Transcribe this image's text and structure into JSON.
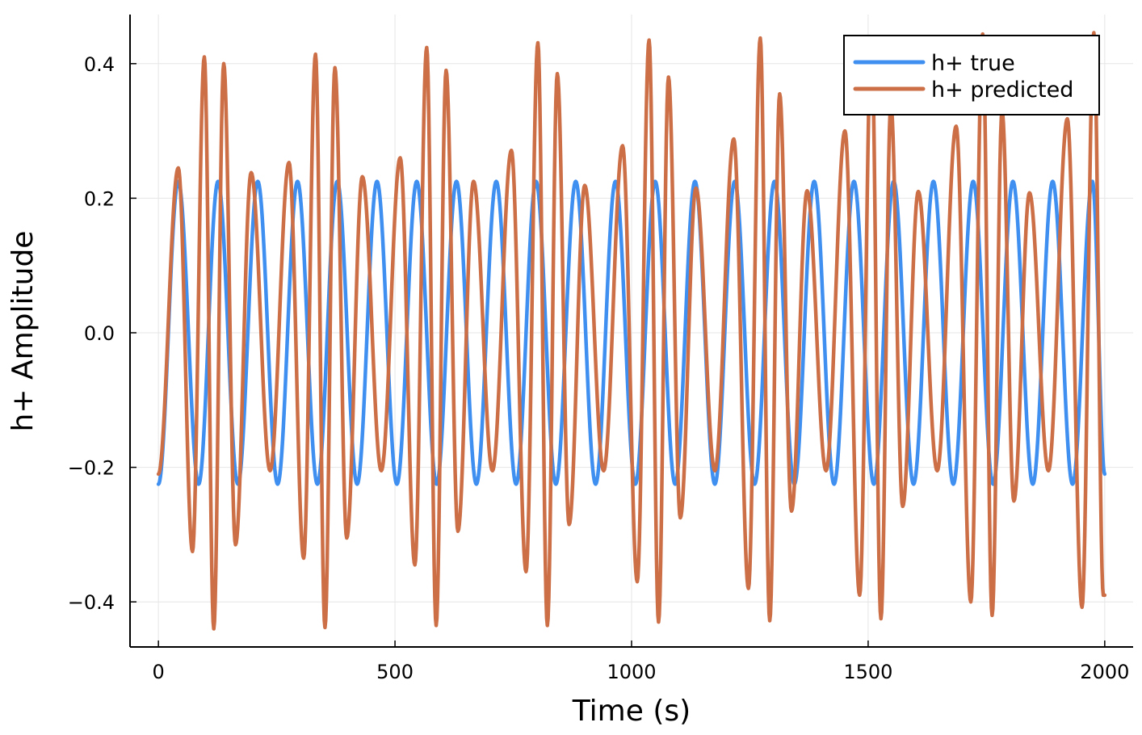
{
  "chart_data": {
    "type": "line",
    "title": "",
    "xlabel": "Time (s)",
    "ylabel": "h+ Amplitude",
    "xlim": [
      -60,
      2060
    ],
    "ylim": [
      -0.467,
      0.473
    ],
    "xticks": [
      0,
      500,
      1000,
      1500,
      2000
    ],
    "xtick_labels": [
      "0",
      "500",
      "1000",
      "1500",
      "2000"
    ],
    "yticks": [
      -0.4,
      -0.2,
      0.0,
      0.2,
      0.4
    ],
    "ytick_labels": [
      "−0.4",
      "−0.2",
      "0.0",
      "0.2",
      "0.4"
    ],
    "grid": true,
    "legend_position": "top-right",
    "series": [
      {
        "name": "h+ true",
        "color": "#3e8ff0",
        "x_range": [
          0,
          2000
        ],
        "points": [
          [
            0,
            -0.225
          ],
          [
            42,
            0.225
          ],
          [
            85,
            -0.225
          ],
          [
            126,
            0.225
          ],
          [
            168,
            -0.225
          ],
          [
            210,
            0.225
          ],
          [
            252,
            -0.225
          ],
          [
            294,
            0.225
          ],
          [
            336,
            -0.225
          ],
          [
            378,
            0.225
          ],
          [
            420,
            -0.225
          ],
          [
            462,
            0.225
          ],
          [
            504,
            -0.225
          ],
          [
            546,
            0.225
          ],
          [
            588,
            -0.225
          ],
          [
            630,
            0.225
          ],
          [
            672,
            -0.225
          ],
          [
            714,
            0.225
          ],
          [
            756,
            -0.225
          ],
          [
            798,
            0.225
          ],
          [
            840,
            -0.225
          ],
          [
            882,
            0.225
          ],
          [
            924,
            -0.225
          ],
          [
            966,
            0.225
          ],
          [
            1008,
            -0.225
          ],
          [
            1050,
            0.225
          ],
          [
            1092,
            -0.225
          ],
          [
            1134,
            0.225
          ],
          [
            1176,
            -0.225
          ],
          [
            1218,
            0.225
          ],
          [
            1260,
            -0.225
          ],
          [
            1302,
            0.225
          ],
          [
            1344,
            -0.225
          ],
          [
            1386,
            0.225
          ],
          [
            1428,
            -0.225
          ],
          [
            1470,
            0.225
          ],
          [
            1512,
            -0.225
          ],
          [
            1554,
            0.225
          ],
          [
            1596,
            -0.225
          ],
          [
            1638,
            0.225
          ],
          [
            1680,
            -0.225
          ],
          [
            1722,
            0.225
          ],
          [
            1764,
            -0.225
          ],
          [
            1806,
            0.225
          ],
          [
            1848,
            -0.225
          ],
          [
            1890,
            0.225
          ],
          [
            1932,
            -0.225
          ],
          [
            1974,
            0.225
          ],
          [
            2000,
            -0.21
          ]
        ]
      },
      {
        "name": "h+ predicted",
        "color": "#cc6f47",
        "x_range": [
          0,
          2000
        ],
        "points": [
          [
            0,
            -0.21
          ],
          [
            42,
            0.245
          ],
          [
            72,
            -0.325
          ],
          [
            97,
            0.41
          ],
          [
            117,
            -0.44
          ],
          [
            138,
            0.4
          ],
          [
            163,
            -0.315
          ],
          [
            196,
            0.238
          ],
          [
            236,
            -0.205
          ],
          [
            276,
            0.253
          ],
          [
            307,
            -0.335
          ],
          [
            332,
            0.414
          ],
          [
            352,
            -0.438
          ],
          [
            373,
            0.394
          ],
          [
            398,
            -0.305
          ],
          [
            431,
            0.232
          ],
          [
            471,
            -0.205
          ],
          [
            511,
            0.26
          ],
          [
            542,
            -0.345
          ],
          [
            567,
            0.424
          ],
          [
            587,
            -0.435
          ],
          [
            608,
            0.39
          ],
          [
            633,
            -0.295
          ],
          [
            666,
            0.225
          ],
          [
            706,
            -0.205
          ],
          [
            746,
            0.271
          ],
          [
            777,
            -0.355
          ],
          [
            802,
            0.431
          ],
          [
            822,
            -0.435
          ],
          [
            843,
            0.385
          ],
          [
            868,
            -0.285
          ],
          [
            901,
            0.219
          ],
          [
            941,
            -0.205
          ],
          [
            981,
            0.278
          ],
          [
            1012,
            -0.37
          ],
          [
            1037,
            0.435
          ],
          [
            1057,
            -0.43
          ],
          [
            1078,
            0.38
          ],
          [
            1103,
            -0.275
          ],
          [
            1136,
            0.215
          ],
          [
            1176,
            -0.205
          ],
          [
            1216,
            0.288
          ],
          [
            1247,
            -0.38
          ],
          [
            1272,
            0.438
          ],
          [
            1292,
            -0.428
          ],
          [
            1313,
            0.355
          ],
          [
            1338,
            -0.265
          ],
          [
            1371,
            0.211
          ],
          [
            1411,
            -0.205
          ],
          [
            1451,
            0.3
          ],
          [
            1482,
            -0.39
          ],
          [
            1507,
            0.44
          ],
          [
            1527,
            -0.425
          ],
          [
            1548,
            0.34
          ],
          [
            1573,
            -0.258
          ],
          [
            1606,
            0.21
          ],
          [
            1646,
            -0.205
          ],
          [
            1686,
            0.307
          ],
          [
            1717,
            -0.4
          ],
          [
            1742,
            0.444
          ],
          [
            1762,
            -0.42
          ],
          [
            1783,
            0.33
          ],
          [
            1808,
            -0.25
          ],
          [
            1841,
            0.208
          ],
          [
            1881,
            -0.205
          ],
          [
            1921,
            0.318
          ],
          [
            1952,
            -0.408
          ],
          [
            1977,
            0.446
          ],
          [
            1997,
            -0.39
          ],
          [
            2000,
            -0.39
          ]
        ]
      }
    ]
  }
}
